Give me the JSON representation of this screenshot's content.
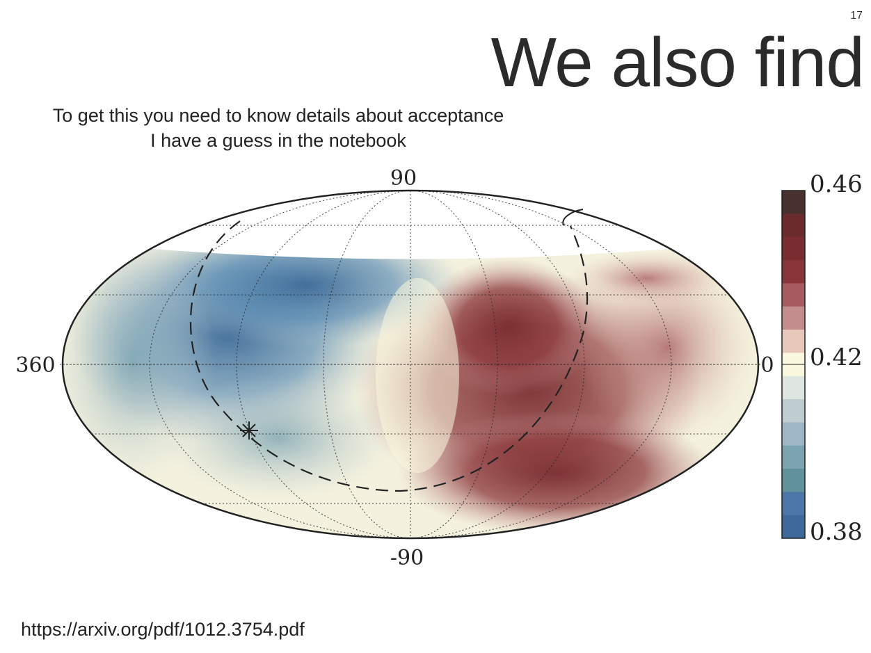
{
  "slide": {
    "page_number": "17",
    "title": "We also find",
    "subtitle_lines": [
      "To get this you need to know details about acceptance",
      "I have a guess in the notebook"
    ],
    "source_link": "https://arxiv.org/pdf/1012.3754.pdf"
  },
  "chart_data": {
    "type": "heatmap",
    "projection": "mollweide",
    "title": "",
    "axis_labels": {
      "top": "90",
      "bottom": "-90",
      "left": "360",
      "right": "0"
    },
    "colorbar": {
      "min": 0.38,
      "max": 0.46,
      "tick_labels": [
        "0.46",
        "0.42",
        "0.38"
      ],
      "tick_values": [
        0.46,
        0.42,
        0.38
      ],
      "colors": [
        "#47302e",
        "#6a2b2c",
        "#7a2d30",
        "#873538",
        "#a65c5e",
        "#c38d8e",
        "#e8c8bb",
        "#faf7df",
        "#dfe6df",
        "#bfcdd0",
        "#9fb6c6",
        "#7ba3b2",
        "#5f929c",
        "#4c76a6",
        "#3d6a98"
      ]
    },
    "grid": true,
    "features": [
      "dashed great circle",
      "star marker"
    ]
  }
}
